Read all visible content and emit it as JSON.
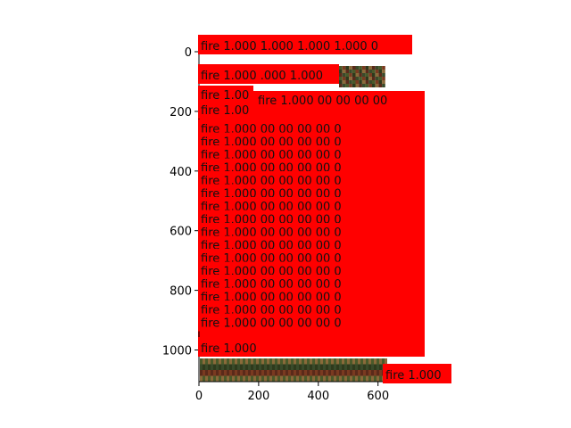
{
  "detection_label": "fire 1.000",
  "label_color": "#ff0000",
  "image_palette": [
    "#4a5a2a",
    "#7a3a20",
    "#2e3a1c",
    "#8a6a3a",
    "#5a2a1a",
    "#3a4a2a"
  ],
  "axes": {
    "x_ticks": [
      "0",
      "200",
      "400",
      "600"
    ],
    "y_ticks": [
      "0",
      "200",
      "400",
      "600",
      "800",
      "1000"
    ]
  },
  "visible_text": {
    "top_row_1": "fire 1.000  1.000  1.000  1.000  0",
    "top_row_2": "fire 1.000 .000  1.000",
    "top_row_3a": "fire 1.00",
    "top_row_3b": "fire 1.000  00  00  00  00",
    "top_row_4": "fire 1.00",
    "bottom_row": "fire 1.000",
    "bottom_right": "fire 1.000",
    "repeated_row": "fire 1.000  00  00  00  00  0"
  }
}
